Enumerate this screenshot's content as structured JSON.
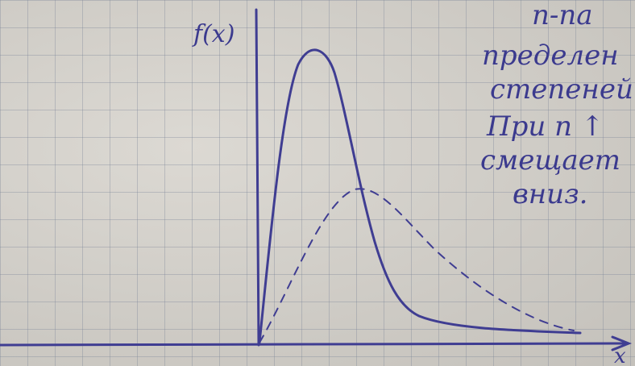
{
  "axis_labels": {
    "y": "f(x)",
    "x": "x"
  },
  "note": {
    "lines": [
      "n-па",
      "пределен",
      "степеней",
      "При n ↑",
      "смещает",
      "вниз."
    ]
  }
}
